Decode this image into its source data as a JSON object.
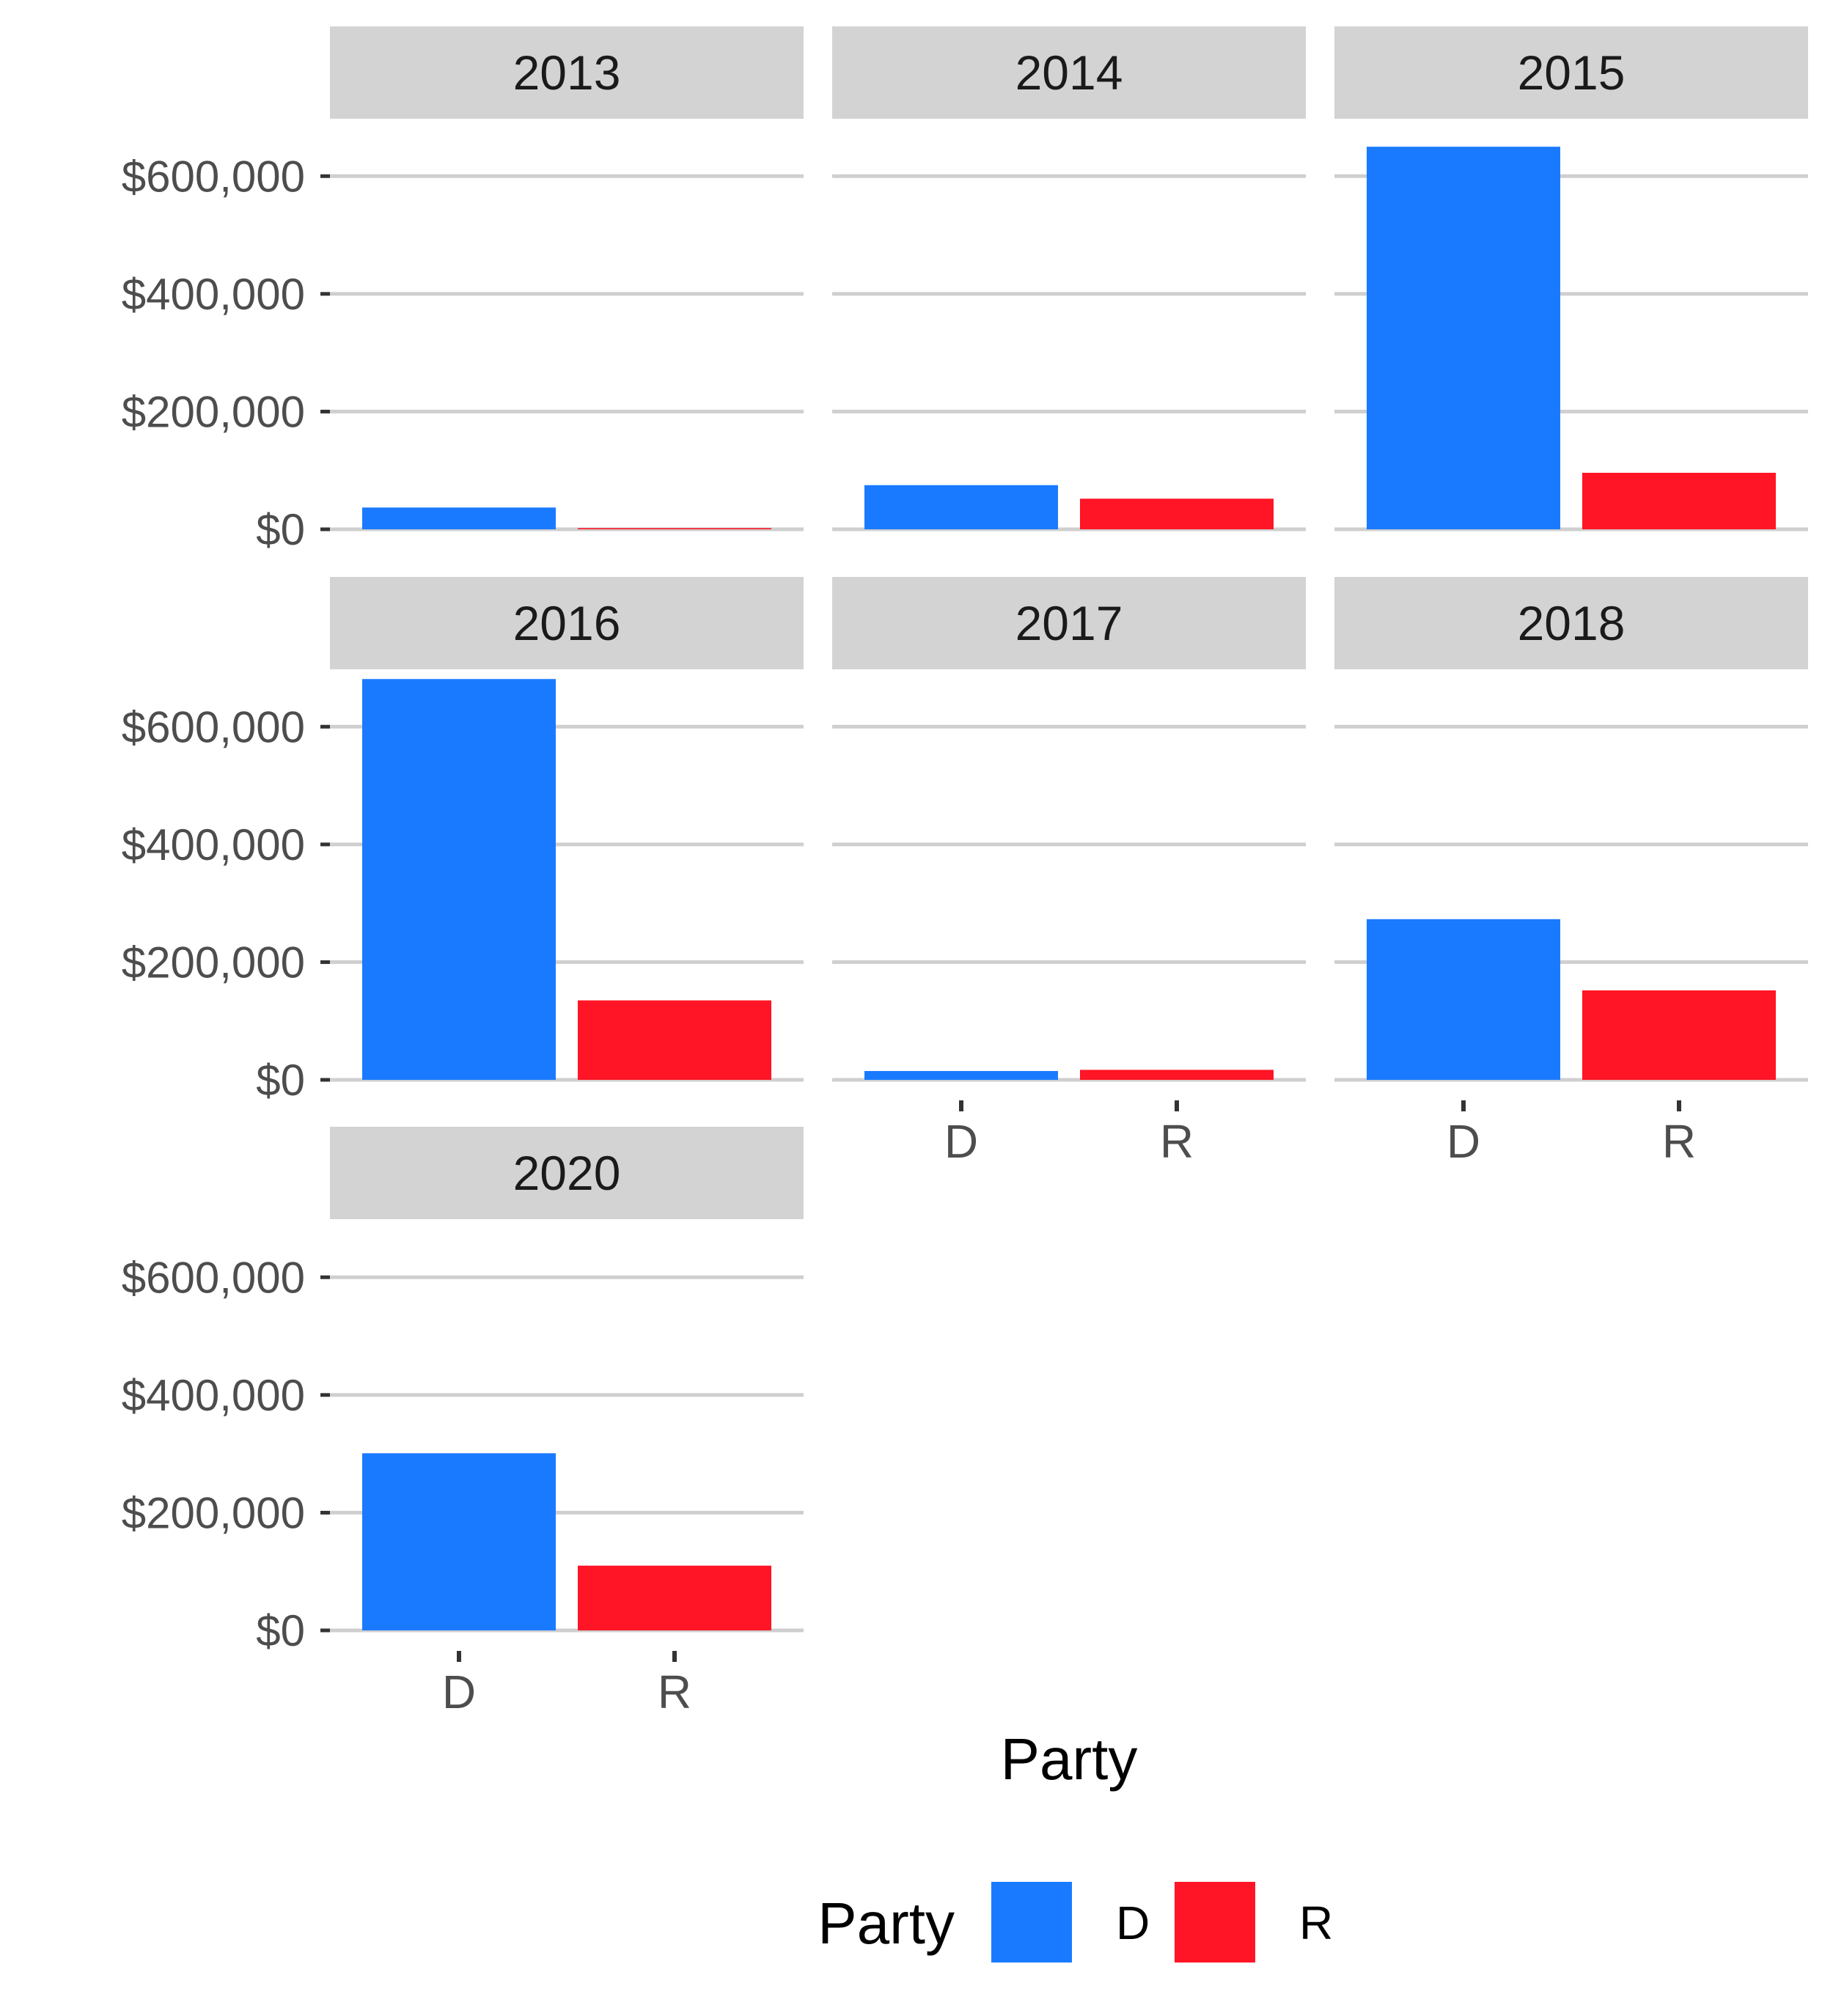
{
  "chart_data": {
    "type": "bar",
    "facet_by": "year",
    "facets": [
      {
        "label": "2013",
        "categories": [
          "D",
          "R"
        ],
        "values": [
          37000,
          2000
        ]
      },
      {
        "label": "2014",
        "categories": [
          "D",
          "R"
        ],
        "values": [
          75000,
          52000
        ]
      },
      {
        "label": "2015",
        "categories": [
          "D",
          "R"
        ],
        "values": [
          650000,
          96000
        ]
      },
      {
        "label": "2016",
        "categories": [
          "D",
          "R"
        ],
        "values": [
          681000,
          135000
        ]
      },
      {
        "label": "2017",
        "categories": [
          "D",
          "R"
        ],
        "values": [
          15000,
          17000
        ]
      },
      {
        "label": "2018",
        "categories": [
          "D",
          "R"
        ],
        "values": [
          273000,
          152000
        ]
      },
      {
        "label": "2020",
        "categories": [
          "D",
          "R"
        ],
        "values": [
          301000,
          110000
        ]
      }
    ],
    "xlabel": "Party",
    "ylabel": "",
    "ylim": [
      0,
      700000
    ],
    "yticks": [
      0,
      200000,
      400000,
      600000
    ],
    "ytick_labels": [
      "$0",
      "$200,000",
      "$400,000",
      "$600,000"
    ],
    "grid": true,
    "legend": {
      "title": "Party",
      "position": "bottom",
      "entries": [
        {
          "label": "D",
          "color": "#1A7AFF"
        },
        {
          "label": "R",
          "color": "#FF1525"
        }
      ]
    },
    "colors": {
      "D": "#1A7AFF",
      "R": "#FF1525"
    }
  }
}
